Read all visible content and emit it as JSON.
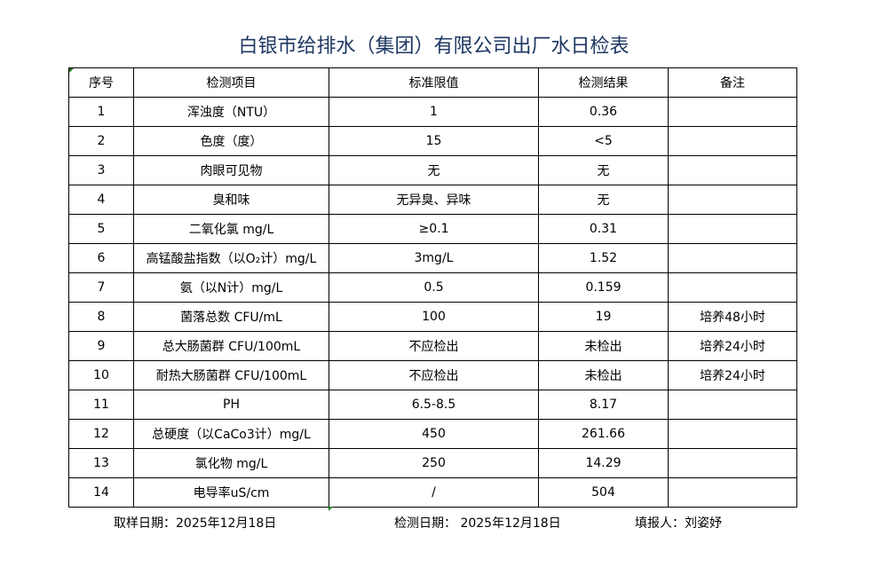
{
  "title": "白银市给排水（集团）有限公司出厂水日检表",
  "headers": [
    "序号",
    "检测项目",
    "标准限值",
    "检测结果",
    "备注"
  ],
  "rows": [
    [
      "1",
      "浑浊度（NTU）",
      "1",
      "0.36",
      ""
    ],
    [
      "2",
      "色度（度）",
      "15",
      "<5",
      ""
    ],
    [
      "3",
      "肉眼可见物",
      "无",
      "无",
      ""
    ],
    [
      "4",
      "臭和味",
      "无异臭、异味",
      "无",
      ""
    ],
    [
      "5",
      "二氧化氯 mg/L",
      "≥0.1",
      "0.31",
      ""
    ],
    [
      "6",
      "高锰酸盐指数（以O₂计）mg/L",
      "3mg/L",
      "1.52",
      ""
    ],
    [
      "7",
      "氨（以N计）mg/L",
      "0.5",
      "0.159",
      ""
    ],
    [
      "8",
      "菌落总数 CFU/mL",
      "100",
      "19",
      "培养48小时"
    ],
    [
      "9",
      "总大肠菌群 CFU/100mL",
      "不应检出",
      "未检出",
      "培养24小时"
    ],
    [
      "10",
      "耐热大肠菌群 CFU/100mL",
      "不应检出",
      "未检出",
      "培养24小时"
    ],
    [
      "11",
      "PH",
      "6.5-8.5",
      "8.17",
      ""
    ],
    [
      "12",
      "总硬度（以CaCo3计）mg/L",
      "450",
      "261.66",
      ""
    ],
    [
      "13",
      "氯化物 mg/L",
      "250",
      "14.29",
      ""
    ],
    [
      "14",
      "电导率uS/cm",
      "/",
      "504",
      ""
    ]
  ],
  "footer": {
    "sample_date": "取样日期：2025年12月18日",
    "test_date": "检测日期： 2025年12月18日",
    "reporter": "填报人：刘姿妤"
  }
}
